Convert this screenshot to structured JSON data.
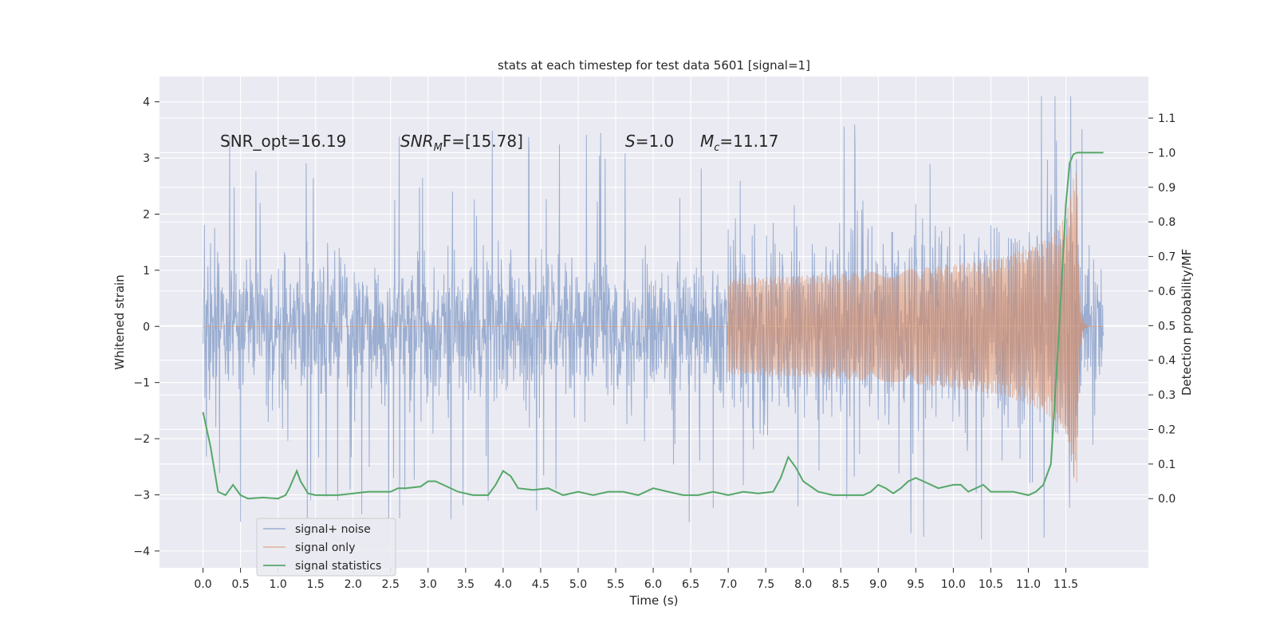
{
  "chart_data": {
    "type": "line",
    "title": "stats at each timestep for test data 5601 [signal=1]",
    "xlabel": "Time (s)",
    "ylabel": "Whitened strain",
    "y2label": "Detection probability/MF",
    "xlim": [
      -0.58,
      12.6
    ],
    "ylim": [
      -4.3,
      4.45
    ],
    "y2lim": [
      -0.2,
      1.22
    ],
    "xticks": [
      "0.0",
      "0.5",
      "1.0",
      "1.5",
      "2.0",
      "2.5",
      "3.0",
      "3.5",
      "4.0",
      "4.5",
      "5.0",
      "5.5",
      "6.0",
      "6.5",
      "7.0",
      "7.5",
      "8.0",
      "8.5",
      "9.0",
      "9.5",
      "10.0",
      "10.5",
      "11.0",
      "11.5"
    ],
    "yticks": [
      "4",
      "3",
      "2",
      "1",
      "0",
      "−1",
      "−2",
      "−3",
      "−4"
    ],
    "y2ticks": [
      "1.1",
      "1.0",
      "0.9",
      "0.8",
      "0.7",
      "0.6",
      "0.5",
      "0.4",
      "0.3",
      "0.2",
      "0.1",
      "0.0"
    ],
    "grid": true,
    "legend": {
      "placement": "lower-left",
      "entries": [
        "signal+ noise",
        "signal only",
        "signal statistics"
      ]
    },
    "annotations": {
      "snr_opt": "SNR_opt=16.19",
      "snr_mf_label": "SNR",
      "snr_mf_sub": "M",
      "snr_mf_tail": "F=[15.78]",
      "s_label": "S",
      "s_value": "=1.0",
      "mc_label": "M",
      "mc_sub": "c",
      "mc_value": "=11.17"
    },
    "series": [
      {
        "name": "signal+ noise",
        "axis": "left",
        "color": "#4c72b0",
        "description": "whitened strain, noise band about ±1.4 with spikes to ±3.5 over t = 0–12 s"
      },
      {
        "name": "signal only",
        "axis": "left",
        "color": "#dd8452",
        "chirp": {
          "start_t": 7.0,
          "merger_t": 11.65,
          "peak_amplitude": 2.8,
          "end_t": 12.0
        }
      },
      {
        "name": "signal statistics",
        "axis": "right",
        "color": "#55a868",
        "x": [
          0.0,
          0.1,
          0.2,
          0.3,
          0.4,
          0.5,
          0.6,
          0.8,
          1.0,
          1.1,
          1.15,
          1.25,
          1.3,
          1.4,
          1.5,
          1.6,
          1.8,
          2.0,
          2.2,
          2.4,
          2.5,
          2.6,
          2.7,
          2.9,
          3.0,
          3.1,
          3.2,
          3.4,
          3.6,
          3.8,
          3.9,
          4.0,
          4.1,
          4.2,
          4.4,
          4.6,
          4.8,
          5.0,
          5.2,
          5.4,
          5.6,
          5.8,
          6.0,
          6.2,
          6.4,
          6.6,
          6.8,
          7.0,
          7.2,
          7.4,
          7.6,
          7.7,
          7.8,
          7.9,
          8.0,
          8.2,
          8.4,
          8.6,
          8.8,
          8.9,
          9.0,
          9.1,
          9.2,
          9.3,
          9.4,
          9.5,
          9.6,
          9.8,
          10.0,
          10.1,
          10.2,
          10.3,
          10.4,
          10.5,
          10.6,
          10.8,
          11.0,
          11.1,
          11.2,
          11.3,
          11.4,
          11.5,
          11.55,
          11.6,
          11.65,
          11.7,
          11.8,
          11.9,
          12.0
        ],
        "values": [
          0.25,
          0.15,
          0.02,
          0.01,
          0.04,
          0.01,
          0.0,
          0.003,
          0.0,
          0.01,
          0.03,
          0.08,
          0.05,
          0.015,
          0.01,
          0.01,
          0.01,
          0.015,
          0.02,
          0.02,
          0.02,
          0.03,
          0.03,
          0.035,
          0.05,
          0.05,
          0.04,
          0.02,
          0.01,
          0.01,
          0.04,
          0.08,
          0.065,
          0.03,
          0.025,
          0.03,
          0.01,
          0.02,
          0.01,
          0.02,
          0.02,
          0.01,
          0.03,
          0.02,
          0.01,
          0.01,
          0.02,
          0.01,
          0.02,
          0.015,
          0.02,
          0.06,
          0.12,
          0.09,
          0.05,
          0.02,
          0.01,
          0.01,
          0.01,
          0.02,
          0.04,
          0.03,
          0.015,
          0.03,
          0.05,
          0.06,
          0.05,
          0.03,
          0.04,
          0.04,
          0.02,
          0.03,
          0.04,
          0.02,
          0.02,
          0.02,
          0.01,
          0.02,
          0.04,
          0.1,
          0.45,
          0.85,
          0.97,
          0.995,
          1.0,
          1.0,
          1.0,
          1.0,
          1.0
        ]
      }
    ]
  }
}
